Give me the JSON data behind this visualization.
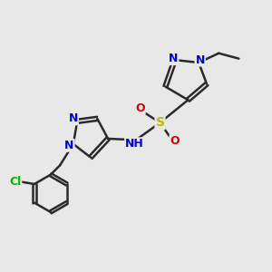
{
  "background_color": "#e8e8e8",
  "bond_color": "#2a2a2a",
  "bond_width": 1.8,
  "atom_colors": {
    "N": "#0000dd",
    "O": "#dd0000",
    "S": "#bbbb00",
    "Cl": "#00bb00",
    "C": "#2a2a2a"
  },
  "font_size": 9,
  "font_size_sub": 8,
  "dbo": 0.07
}
